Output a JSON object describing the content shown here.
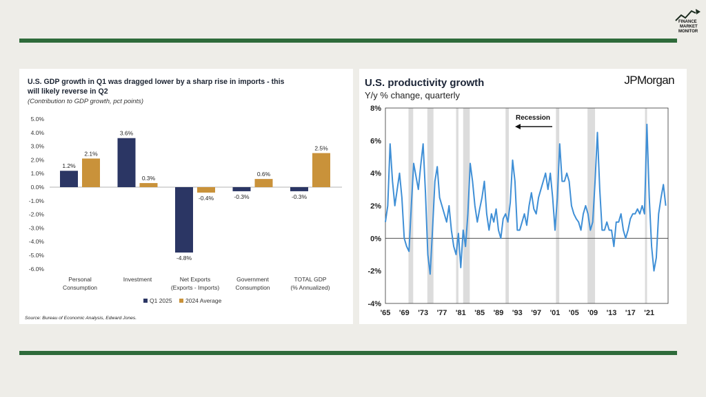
{
  "colors": {
    "background": "#eeede8",
    "rule": "#2e6b3a",
    "q1_2025": "#2b3664",
    "avg_2024": "#c9923a",
    "productivity_line": "#3f8fd6",
    "recession": "#dcdcdc"
  },
  "logo": {
    "lines": [
      "FINANCE",
      "MARKET",
      "MONITOR"
    ],
    "icon": "chart-arrow-icon"
  },
  "chart_data": [
    {
      "type": "bar",
      "title": "U.S. GDP growth in Q1 was dragged lower by a sharp rise in imports - this will likely reverse in Q2",
      "subtitle": "(Contribution to GDP growth, pct points)",
      "source": "Source: Bureau of Economic Analysis, Edward Jones.",
      "categories": [
        [
          "Personal",
          "Consumption"
        ],
        [
          "Investment"
        ],
        [
          "Net Exports",
          "(Exports - Imports)"
        ],
        [
          "Government",
          "Consumption"
        ],
        [
          "TOTAL GDP",
          "(% Annualized)"
        ]
      ],
      "series": [
        {
          "name": "Q1 2025",
          "values": [
            1.2,
            3.6,
            -4.8,
            -0.3,
            -0.3
          ],
          "labels": [
            "1.2%",
            "3.6%",
            "-4.8%",
            "-0.3%",
            "-0.3%"
          ]
        },
        {
          "name": "2024 Average",
          "values": [
            2.1,
            0.3,
            -0.4,
            0.6,
            2.5
          ],
          "labels": [
            "2.1%",
            "0.3%",
            "-0.4%",
            "0.6%",
            "2.5%"
          ]
        }
      ],
      "ylim": [
        -6,
        5
      ],
      "yticks": [
        "5.0%",
        "4.0%",
        "3.0%",
        "2.0%",
        "1.0%",
        "0.0%",
        "-1.0%",
        "-2.0%",
        "-3.0%",
        "-4.0%",
        "-5.0%",
        "-6.0%"
      ],
      "legend": "bottom",
      "grid": false
    },
    {
      "type": "line",
      "title": "U.S. productivity growth",
      "subtitle": "Y/y % change, quarterly",
      "brand": "JPMorgan",
      "ylim": [
        -4,
        8
      ],
      "yticks": [
        "8%",
        "6%",
        "4%",
        "2%",
        "0%",
        "-2%",
        "-4%"
      ],
      "xticks": [
        "'65",
        "'69",
        "'73",
        "'77",
        "'81",
        "'85",
        "'89",
        "'93",
        "'97",
        "'01",
        "'05",
        "'09",
        "'13",
        "'17",
        "'21"
      ],
      "xlim": [
        1965,
        2025
      ],
      "recession_label": "Recession",
      "recessions": [
        [
          1969.9,
          1970.9
        ],
        [
          1973.9,
          1975.2
        ],
        [
          1980.0,
          1980.5
        ],
        [
          1981.5,
          1982.9
        ],
        [
          1990.5,
          1991.2
        ],
        [
          2001.2,
          2001.9
        ],
        [
          2007.9,
          2009.5
        ],
        [
          2020.1,
          2020.5
        ]
      ],
      "x": [
        1965.0,
        1965.5,
        1966.0,
        1966.5,
        1967.0,
        1967.5,
        1968.0,
        1968.5,
        1969.0,
        1969.5,
        1970.0,
        1970.5,
        1971.0,
        1971.5,
        1972.0,
        1972.5,
        1973.0,
        1973.5,
        1974.0,
        1974.5,
        1975.0,
        1975.5,
        1976.0,
        1976.5,
        1977.0,
        1977.5,
        1978.0,
        1978.5,
        1979.0,
        1979.5,
        1980.0,
        1980.5,
        1981.0,
        1981.5,
        1982.0,
        1982.5,
        1983.0,
        1983.5,
        1984.0,
        1984.5,
        1985.0,
        1985.5,
        1986.0,
        1986.5,
        1987.0,
        1987.5,
        1988.0,
        1988.5,
        1989.0,
        1989.5,
        1990.0,
        1990.5,
        1991.0,
        1991.5,
        1992.0,
        1992.5,
        1993.0,
        1993.5,
        1994.0,
        1994.5,
        1995.0,
        1995.5,
        1996.0,
        1996.5,
        1997.0,
        1997.5,
        1998.0,
        1998.5,
        1999.0,
        1999.5,
        2000.0,
        2000.5,
        2001.0,
        2001.5,
        2002.0,
        2002.5,
        2003.0,
        2003.5,
        2004.0,
        2004.5,
        2005.0,
        2005.5,
        2006.0,
        2006.5,
        2007.0,
        2007.5,
        2008.0,
        2008.5,
        2009.0,
        2009.5,
        2010.0,
        2010.5,
        2011.0,
        2011.5,
        2012.0,
        2012.5,
        2013.0,
        2013.5,
        2014.0,
        2014.5,
        2015.0,
        2015.5,
        2016.0,
        2016.5,
        2017.0,
        2017.5,
        2018.0,
        2018.5,
        2019.0,
        2019.5,
        2020.0,
        2020.5,
        2021.0,
        2021.5,
        2022.0,
        2022.5,
        2023.0,
        2023.5,
        2024.0,
        2024.5
      ],
      "y": [
        1.0,
        2.0,
        5.8,
        3.5,
        2.0,
        3.0,
        4.0,
        2.5,
        0.0,
        -0.5,
        -0.8,
        2.0,
        4.6,
        3.8,
        3.0,
        4.5,
        5.8,
        2.8,
        -1.0,
        -2.2,
        0.5,
        3.5,
        4.4,
        2.5,
        2.0,
        1.5,
        1.0,
        2.0,
        0.5,
        -0.5,
        -1.0,
        0.3,
        -1.8,
        0.5,
        -0.5,
        1.5,
        4.6,
        3.5,
        2.0,
        1.0,
        1.8,
        2.5,
        3.5,
        1.5,
        0.5,
        1.5,
        1.0,
        1.8,
        0.5,
        0.0,
        1.2,
        1.5,
        1.0,
        2.2,
        4.8,
        3.5,
        0.5,
        0.5,
        1.0,
        1.5,
        0.8,
        2.0,
        2.8,
        1.8,
        1.5,
        2.5,
        3.0,
        3.5,
        4.0,
        3.0,
        4.0,
        2.5,
        0.5,
        2.5,
        5.8,
        3.5,
        3.5,
        4.0,
        3.5,
        2.0,
        1.5,
        1.2,
        1.0,
        0.5,
        1.5,
        2.0,
        1.5,
        0.5,
        1.0,
        3.5,
        6.5,
        3.0,
        0.5,
        0.5,
        1.0,
        0.5,
        0.5,
        -0.5,
        1.0,
        1.0,
        1.5,
        0.5,
        0.0,
        0.5,
        1.2,
        1.5,
        1.5,
        1.8,
        1.5,
        2.0,
        1.5,
        7.0,
        2.5,
        -0.5,
        -2.0,
        -1.2,
        1.5,
        2.5,
        3.3,
        2.0
      ],
      "grid": false
    }
  ]
}
